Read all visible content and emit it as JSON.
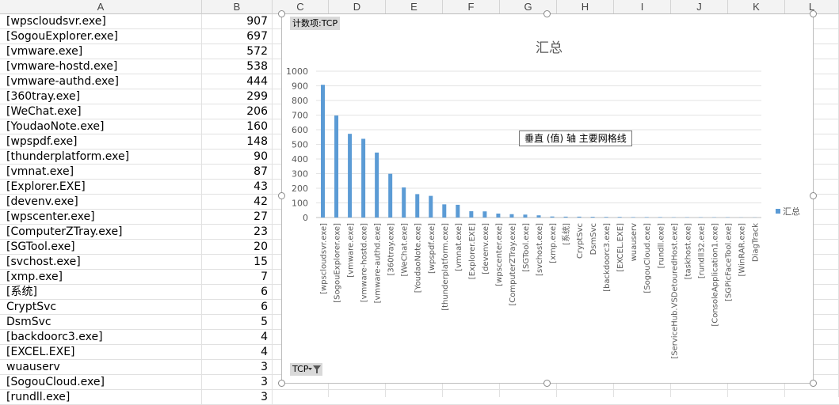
{
  "sheet": {
    "column_headers": [
      "A",
      "B",
      "C",
      "D",
      "E",
      "F",
      "G",
      "H",
      "I",
      "J",
      "K",
      "L"
    ],
    "rows": [
      {
        "name": "[wpscloudsvr.exe]",
        "value": "907"
      },
      {
        "name": "[SogouExplorer.exe]",
        "value": "697"
      },
      {
        "name": "[vmware.exe]",
        "value": "572"
      },
      {
        "name": "[vmware-hostd.exe]",
        "value": "538"
      },
      {
        "name": "[vmware-authd.exe]",
        "value": "444"
      },
      {
        "name": "[360tray.exe]",
        "value": "299"
      },
      {
        "name": "[WeChat.exe]",
        "value": "206"
      },
      {
        "name": "[YoudaoNote.exe]",
        "value": "160"
      },
      {
        "name": "[wpspdf.exe]",
        "value": "148"
      },
      {
        "name": "[thunderplatform.exe]",
        "value": "90"
      },
      {
        "name": "[vmnat.exe]",
        "value": "87"
      },
      {
        "name": "[Explorer.EXE]",
        "value": "43"
      },
      {
        "name": "[devenv.exe]",
        "value": "42"
      },
      {
        "name": "[wpscenter.exe]",
        "value": "27"
      },
      {
        "name": "[ComputerZTray.exe]",
        "value": "23"
      },
      {
        "name": "[SGTool.exe]",
        "value": "20"
      },
      {
        "name": "[svchost.exe]",
        "value": "15"
      },
      {
        "name": "[xmp.exe]",
        "value": "7"
      },
      {
        "name": "[系统]",
        "value": "6"
      },
      {
        "name": "CryptSvc",
        "value": "6"
      },
      {
        "name": "DsmSvc",
        "value": "5"
      },
      {
        "name": "[backdoorc3.exe]",
        "value": "4"
      },
      {
        "name": "[EXCEL.EXE]",
        "value": "4"
      },
      {
        "name": "wuauserv",
        "value": "3"
      },
      {
        "name": "[SogouCloud.exe]",
        "value": "3"
      },
      {
        "name": "[rundll.exe]",
        "value": "3"
      }
    ]
  },
  "pivot": {
    "value_field_label": "计数项:TCP",
    "filter_field_label": "TCP",
    "tooltip": "垂直 (值) 轴 主要网格线"
  },
  "chart_data": {
    "type": "bar",
    "title": "汇总",
    "legend": {
      "position": "right",
      "label": "汇总"
    },
    "ylim": [
      0,
      1000
    ],
    "yticks": [
      0,
      100,
      200,
      300,
      400,
      500,
      600,
      700,
      800,
      900,
      1000
    ],
    "grid": true,
    "color": "#5b9bd5",
    "categories": [
      "[wpscloudsvr.exe]",
      "[SogouExplorer.exe]",
      "[vmware.exe]",
      "[vmware-hostd.exe]",
      "[vmware-authd.exe]",
      "[360tray.exe]",
      "[WeChat.exe]",
      "[YoudaoNote.exe]",
      "[wpspdf.exe]",
      "[thunderplatform.exe]",
      "[vmnat.exe]",
      "[Explorer.EXE]",
      "[devenv.exe]",
      "[wpscenter.exe]",
      "[ComputerZTray.exe]",
      "[SGTool.exe]",
      "[svchost.exe]",
      "[xmp.exe]",
      "[系统]",
      "CryptSvc",
      "DsmSvc",
      "[backdoorc3.exe]",
      "[EXCEL.EXE]",
      "wuauserv",
      "[SogouCloud.exe]",
      "[rundll.exe]",
      "[ServiceHub.VSDetouredHost.exe]",
      "[taskhost.exe]",
      "[rundll32.exe]",
      "[ConsoleApplication1.exe]",
      "[SGPicFaceTool.exe]",
      "[WinRAR.exe]",
      "DiagTrack"
    ],
    "series": [
      {
        "name": "汇总",
        "values": [
          907,
          697,
          572,
          538,
          444,
          299,
          206,
          160,
          148,
          90,
          87,
          43,
          42,
          27,
          23,
          20,
          15,
          7,
          6,
          6,
          5,
          4,
          4,
          3,
          3,
          3,
          2,
          2,
          2,
          2,
          2,
          1,
          1
        ]
      }
    ]
  }
}
